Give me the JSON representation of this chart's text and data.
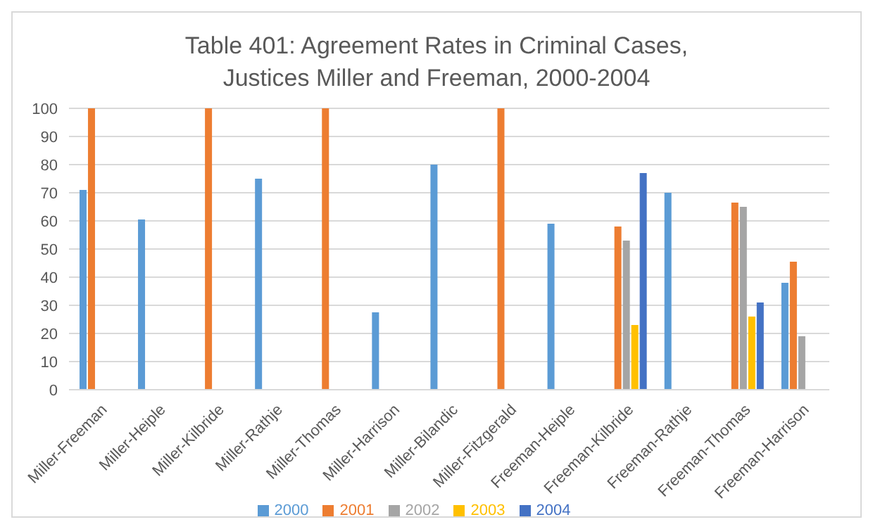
{
  "chart_data": {
    "type": "bar",
    "title": "Table 401: Agreement Rates in Criminal Cases, Justices Miller and Freeman, 2000-2004",
    "categories": [
      "Miller-Freeman",
      "Miller-Heiple",
      "Miller-Kilbride",
      "Miller-Rathje",
      "Miller-Thomas",
      "Miller-Harrison",
      "Miller-Bilandic",
      "Miller-Fitzgerald",
      "Freeman-Heiple",
      "Freeman-Kilbride",
      "Freeman-Rathje",
      "Freeman-Thomas",
      "Freeman-Harrison"
    ],
    "series": [
      {
        "name": "2000",
        "color": "#5b9bd5",
        "values": [
          71,
          60.5,
          null,
          75,
          null,
          27.5,
          80,
          null,
          59,
          null,
          70,
          null,
          38
        ]
      },
      {
        "name": "2001",
        "color": "#ed7d31",
        "values": [
          100,
          null,
          100,
          null,
          100,
          null,
          null,
          100,
          null,
          58,
          null,
          66.5,
          45.5
        ]
      },
      {
        "name": "2002",
        "color": "#a5a5a5",
        "values": [
          null,
          null,
          null,
          null,
          null,
          null,
          null,
          null,
          null,
          53,
          null,
          65,
          19
        ]
      },
      {
        "name": "2003",
        "color": "#ffc000",
        "values": [
          null,
          null,
          null,
          null,
          null,
          null,
          null,
          null,
          null,
          23,
          null,
          26,
          null
        ]
      },
      {
        "name": "2004",
        "color": "#4472c4",
        "values": [
          null,
          null,
          null,
          null,
          null,
          null,
          null,
          null,
          null,
          77,
          null,
          31,
          null
        ]
      }
    ],
    "ylim": [
      0,
      100
    ],
    "yticks": [
      0,
      10,
      20,
      30,
      40,
      50,
      60,
      70,
      80,
      90,
      100
    ],
    "grid": "y",
    "legend": "bottom"
  }
}
